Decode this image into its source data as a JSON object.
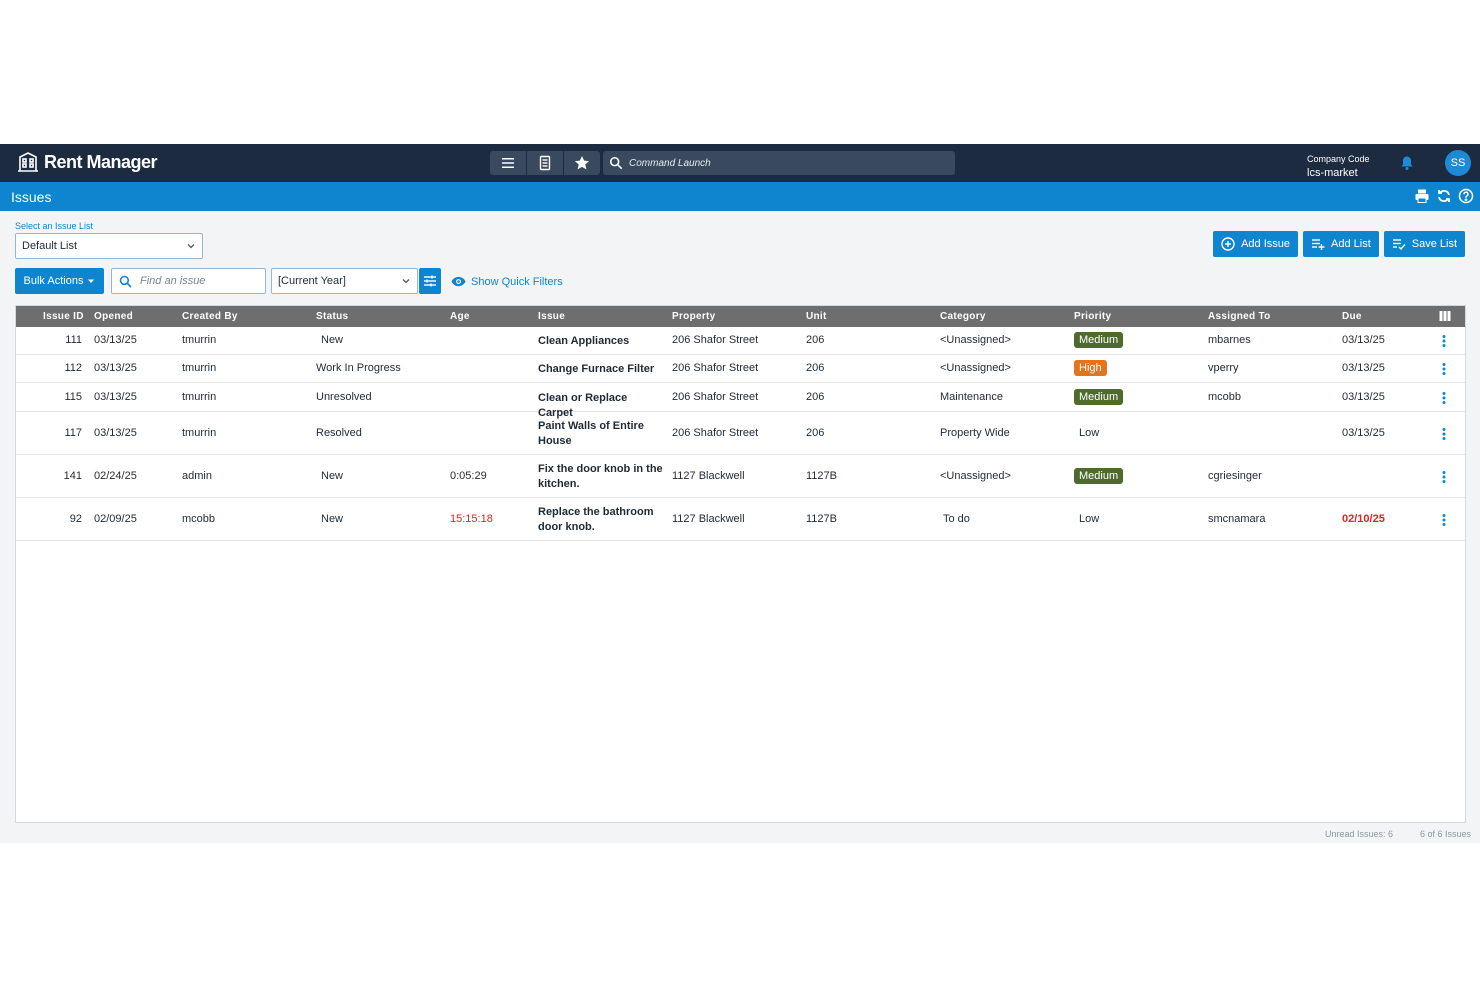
{
  "brand": {
    "name": "Rent Manager"
  },
  "topbar": {
    "command_placeholder": "Command Launch",
    "company_label": "Company Code",
    "company_value": "lcs-market",
    "user_initials": "SS"
  },
  "page": {
    "title": "Issues"
  },
  "list_select": {
    "label": "Select an Issue List",
    "value": "Default List"
  },
  "actions": {
    "add_issue": "Add Issue",
    "add_list": "Add List",
    "save_list": "Save List"
  },
  "toolbar": {
    "bulk_actions": "Bulk Actions",
    "find_placeholder": "Find an issue",
    "date_filter": "[Current Year]",
    "quick_filters": "Show Quick Filters"
  },
  "columns": [
    "Issue ID",
    "Opened",
    "Created By",
    "Status",
    "Age",
    "Issue",
    "Property",
    "Unit",
    "Category",
    "Priority",
    "Assigned To",
    "Due"
  ],
  "rows": [
    {
      "id": "111",
      "opened": "03/13/25",
      "created_by": "tmurrin",
      "status": "New",
      "age": "",
      "issue": "Clean Appliances",
      "property": "206 Shafor Street",
      "unit": "206",
      "category": "<Unassigned>",
      "priority": "Medium",
      "assigned": "mbarnes",
      "due": "03/13/25"
    },
    {
      "id": "112",
      "opened": "03/13/25",
      "created_by": "tmurrin",
      "status": "Work In Progress",
      "age": "",
      "issue": "Change Furnace Filter",
      "property": "206 Shafor Street",
      "unit": "206",
      "category": "<Unassigned>",
      "priority": "High",
      "assigned": "vperry",
      "due": "03/13/25"
    },
    {
      "id": "115",
      "opened": "03/13/25",
      "created_by": "tmurrin",
      "status": "Unresolved",
      "age": "",
      "issue": "Clean or Replace Carpet",
      "property": "206 Shafor Street",
      "unit": "206",
      "category": "Maintenance",
      "priority": "Medium",
      "assigned": "mcobb",
      "due": "03/13/25"
    },
    {
      "id": "117",
      "opened": "03/13/25",
      "created_by": "tmurrin",
      "status": "Resolved",
      "age": "",
      "issue": "Paint Walls of Entire House",
      "property": "206 Shafor Street",
      "unit": "206",
      "category": "Property Wide",
      "priority": "Low",
      "assigned": "",
      "due": "03/13/25"
    },
    {
      "id": "141",
      "opened": "02/24/25",
      "created_by": "admin",
      "status": "New",
      "age": "0:05:29",
      "issue": "Fix the door knob in the kitchen.",
      "property": "1127 Blackwell",
      "unit": "1127B",
      "category": "<Unassigned>",
      "priority": "Medium",
      "assigned": "cgriesinger",
      "due": ""
    },
    {
      "id": "92",
      "opened": "02/09/25",
      "created_by": "mcobb",
      "status": "New",
      "age": "15:15:18",
      "issue": "Replace the bathroom door knob.",
      "property": "1127 Blackwell",
      "unit": "1127B",
      "category": "To do",
      "priority": "Low",
      "assigned": "smcnamara",
      "due": "02/10/25"
    }
  ],
  "footer": {
    "unread": "Unread Issues: 6",
    "count": "6 of 6 Issues"
  },
  "colors": {
    "navy": "#1c2b3f",
    "blue": "#0f85d0",
    "medium": "#4f6a2d",
    "high": "#e4731b",
    "overdue": "#e02424"
  }
}
